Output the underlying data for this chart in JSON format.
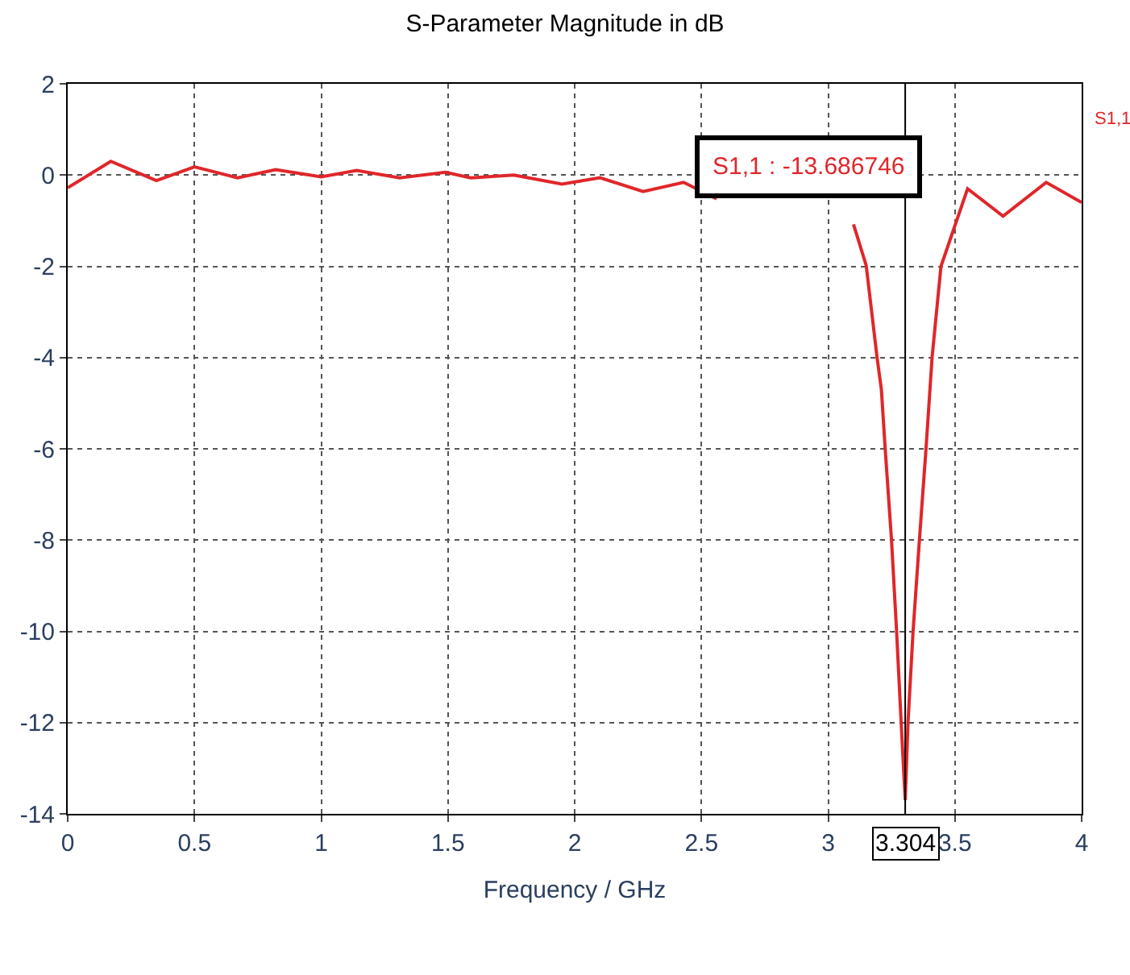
{
  "chart_data": {
    "type": "line",
    "title": "S-Parameter Magnitude in dB",
    "xlabel": "Frequency / GHz",
    "x": [
      0,
      0.17,
      0.35,
      0.5,
      0.67,
      0.82,
      1.0,
      1.14,
      1.31,
      1.49,
      1.59,
      1.76,
      1.95,
      2.1,
      2.27,
      2.43,
      2.56,
      2.8,
      3.1,
      3.15,
      3.193,
      3.21,
      3.225,
      3.25,
      3.27,
      3.288,
      3.304,
      3.315,
      3.335,
      3.36,
      3.386,
      3.41,
      3.445,
      3.55,
      3.69,
      3.86,
      4.0
    ],
    "series": [
      {
        "name": "S1,1",
        "color": "#e0262a",
        "values": [
          -0.28,
          0.3,
          -0.12,
          0.18,
          -0.06,
          0.12,
          -0.04,
          0.1,
          -0.06,
          0.06,
          -0.06,
          0,
          -0.2,
          -0.06,
          -0.36,
          -0.16,
          -0.52,
          null,
          -1.08,
          -1.98,
          -4,
          -4.7,
          -6,
          -8,
          -10,
          -12,
          -13.7,
          -12,
          -10,
          -8,
          -6,
          -4,
          -2,
          -0.3,
          -0.9,
          -0.16,
          -0.6
        ]
      }
    ],
    "annotations": [
      "S1,1 : -13.686746"
    ],
    "ref_lines": [
      {
        "axis": "x",
        "value": 3.304,
        "label": "3.304",
        "color": "#000000"
      }
    ],
    "xlim": [
      0,
      4
    ],
    "xticks": [
      0,
      0.5,
      1,
      1.5,
      2,
      2.5,
      3,
      3.5,
      4
    ],
    "ylim": [
      -14,
      2
    ],
    "yticks": [
      -14,
      -12,
      -10,
      -8,
      -6,
      -4,
      -2,
      0,
      2
    ],
    "grid": true,
    "legend": false,
    "line_style": "solid",
    "marker": "none"
  }
}
